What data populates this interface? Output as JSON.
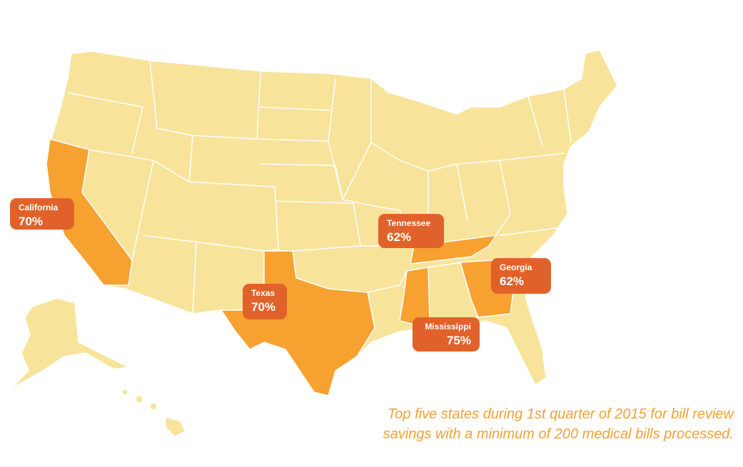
{
  "map": {
    "callouts": [
      {
        "state": "California",
        "value": "70%"
      },
      {
        "state": "Tennessee",
        "value": "62%"
      },
      {
        "state": "Texas",
        "value": "70%"
      },
      {
        "state": "Georgia",
        "value": "62%"
      },
      {
        "state": "Mississippi",
        "value": "75%"
      }
    ]
  },
  "caption": {
    "lines": [
      "Top five states during 1st quarter of 2015 for bill review",
      "savings with a minimum of 200 medical bills processed."
    ]
  }
}
